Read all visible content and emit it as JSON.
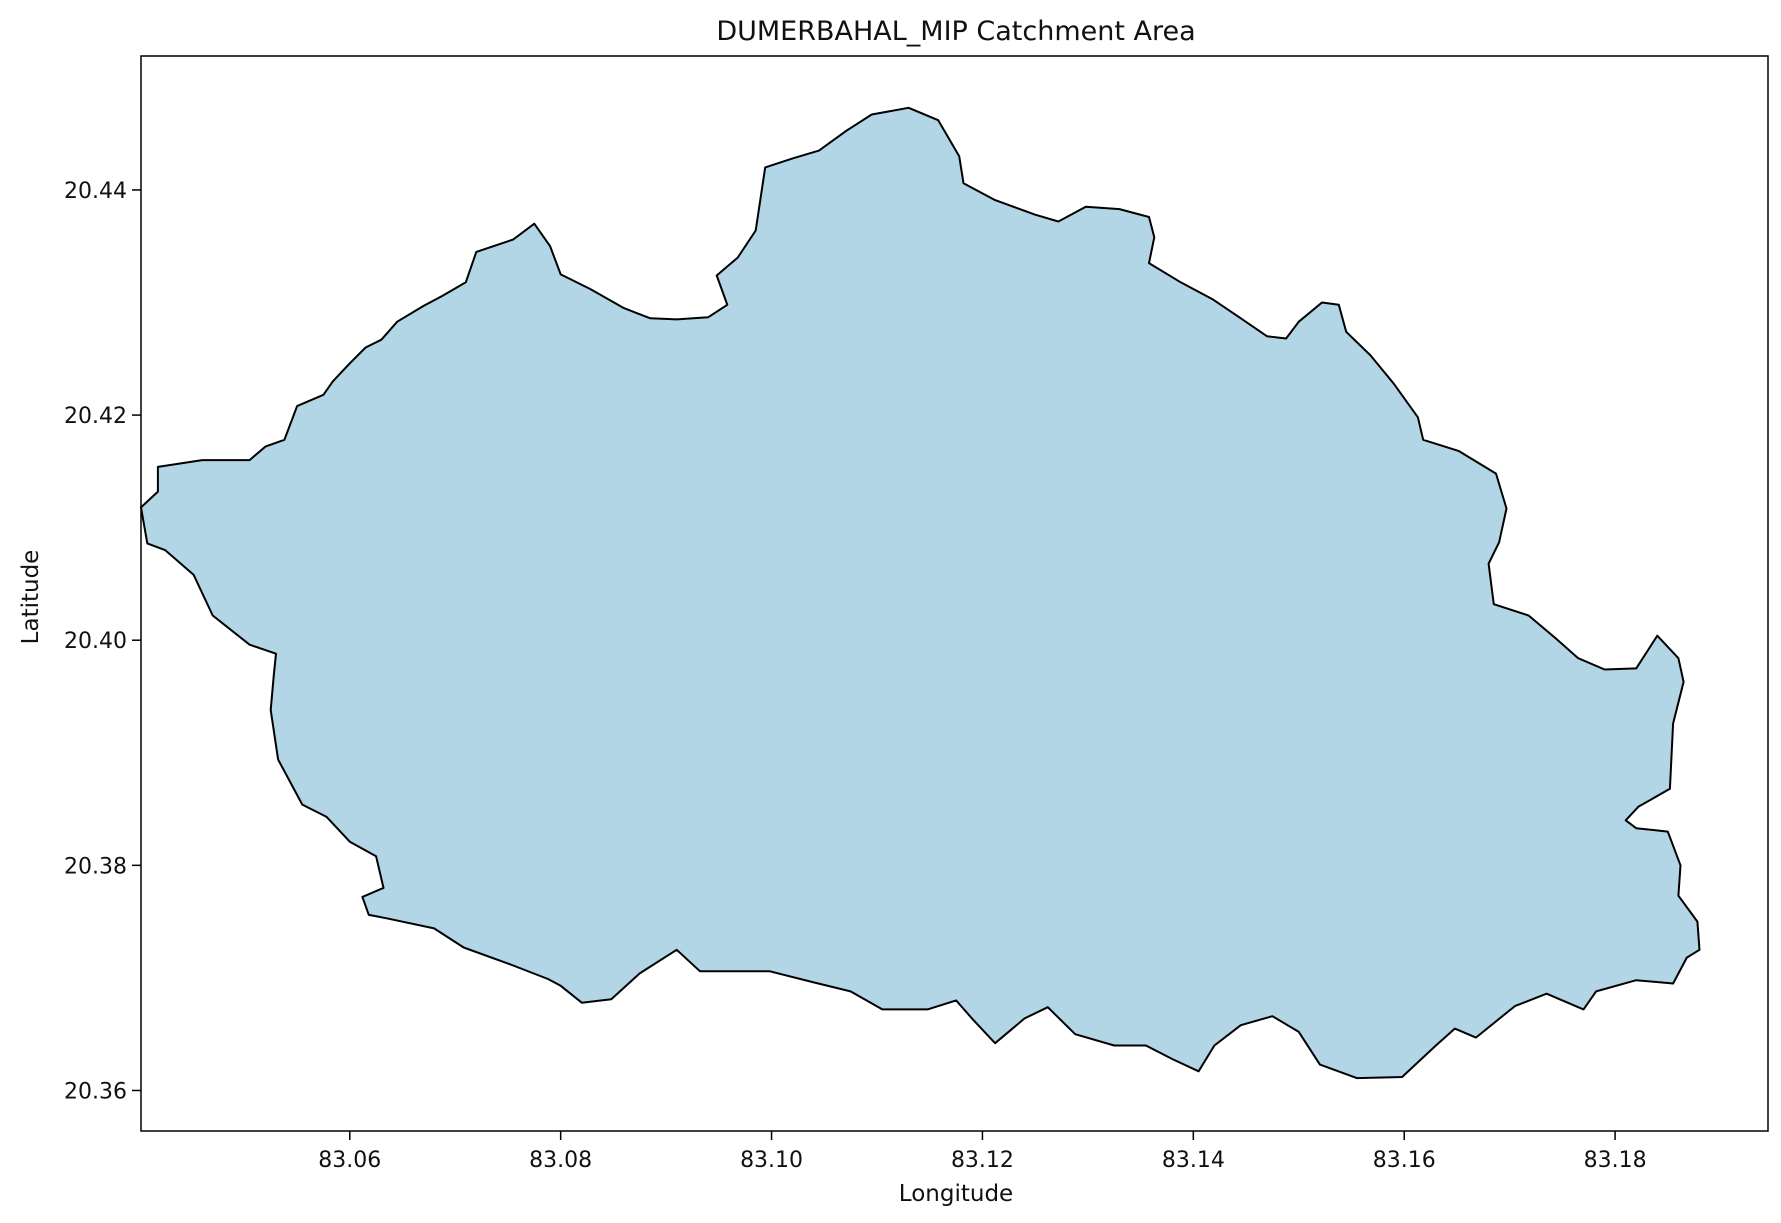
{
  "chart_data": {
    "type": "map",
    "title": "DUMERBAHAL_MIP Catchment Area",
    "xlabel": "Longitude",
    "ylabel": "Latitude",
    "xlim": [
      83.0402,
      83.1945
    ],
    "ylim": [
      20.3564,
      20.4519
    ],
    "x_ticks": [
      83.06,
      83.08,
      83.1,
      83.12,
      83.14,
      83.16,
      83.18
    ],
    "x_tick_labels": [
      "83.06",
      "83.08",
      "83.10",
      "83.12",
      "83.14",
      "83.16",
      "83.18"
    ],
    "y_ticks": [
      20.36,
      20.38,
      20.4,
      20.42,
      20.44
    ],
    "y_tick_labels": [
      "20.36",
      "20.38",
      "20.40",
      "20.42",
      "20.44"
    ],
    "grid": false,
    "fill_color": "#b3d6e6",
    "edge_color": "#000000",
    "catchment_boundary": [
      [
        83.1095,
        20.4467
      ],
      [
        83.113,
        20.4473
      ],
      [
        83.1158,
        20.4462
      ],
      [
        83.1178,
        20.443
      ],
      [
        83.1182,
        20.4406
      ],
      [
        83.1212,
        20.4391
      ],
      [
        83.125,
        20.4378
      ],
      [
        83.1272,
        20.4372
      ],
      [
        83.1298,
        20.4385
      ],
      [
        83.133,
        20.4383
      ],
      [
        83.1358,
        20.4376
      ],
      [
        83.1363,
        20.4358
      ],
      [
        83.1358,
        20.4335
      ],
      [
        83.1388,
        20.4318
      ],
      [
        83.1418,
        20.4303
      ],
      [
        83.1445,
        20.4286
      ],
      [
        83.147,
        20.427
      ],
      [
        83.1488,
        20.4268
      ],
      [
        83.15,
        20.4283
      ],
      [
        83.1522,
        20.43
      ],
      [
        83.1538,
        20.4298
      ],
      [
        83.1545,
        20.4274
      ],
      [
        83.1568,
        20.4253
      ],
      [
        83.159,
        20.4228
      ],
      [
        83.1613,
        20.4198
      ],
      [
        83.1618,
        20.4178
      ],
      [
        83.1652,
        20.4168
      ],
      [
        83.1687,
        20.4148
      ],
      [
        83.1697,
        20.4117
      ],
      [
        83.169,
        20.4087
      ],
      [
        83.168,
        20.4068
      ],
      [
        83.1685,
        20.4032
      ],
      [
        83.1718,
        20.4022
      ],
      [
        83.1742,
        20.4003
      ],
      [
        83.1765,
        20.3984
      ],
      [
        83.179,
        20.3974
      ],
      [
        83.182,
        20.3975
      ],
      [
        83.184,
        20.4004
      ],
      [
        83.186,
        20.3984
      ],
      [
        83.1865,
        20.3963
      ],
      [
        83.1855,
        20.3926
      ],
      [
        83.1852,
        20.3868
      ],
      [
        83.1822,
        20.3852
      ],
      [
        83.181,
        20.384
      ],
      [
        83.182,
        20.3833
      ],
      [
        83.185,
        20.383
      ],
      [
        83.1862,
        20.38
      ],
      [
        83.186,
        20.3773
      ],
      [
        83.1878,
        20.375
      ],
      [
        83.188,
        20.3725
      ],
      [
        83.1868,
        20.3718
      ],
      [
        83.1855,
        20.3695
      ],
      [
        83.182,
        20.3698
      ],
      [
        83.1782,
        20.3688
      ],
      [
        83.177,
        20.3672
      ],
      [
        83.1735,
        20.3686
      ],
      [
        83.1705,
        20.3675
      ],
      [
        83.1668,
        20.3647
      ],
      [
        83.1648,
        20.3655
      ],
      [
        83.163,
        20.364
      ],
      [
        83.1598,
        20.3612
      ],
      [
        83.1555,
        20.3611
      ],
      [
        83.152,
        20.3623
      ],
      [
        83.15,
        20.3652
      ],
      [
        83.1475,
        20.3666
      ],
      [
        83.1445,
        20.3658
      ],
      [
        83.142,
        20.364
      ],
      [
        83.1405,
        20.3617
      ],
      [
        83.138,
        20.3628
      ],
      [
        83.1355,
        20.364
      ],
      [
        83.1325,
        20.364
      ],
      [
        83.1288,
        20.365
      ],
      [
        83.1262,
        20.3674
      ],
      [
        83.124,
        20.3664
      ],
      [
        83.1212,
        20.3642
      ],
      [
        83.119,
        20.3664
      ],
      [
        83.1175,
        20.368
      ],
      [
        83.1148,
        20.3672
      ],
      [
        83.1105,
        20.3672
      ],
      [
        83.1075,
        20.3688
      ],
      [
        83.104,
        20.3696
      ],
      [
        83.0998,
        20.3706
      ],
      [
        83.096,
        20.3706
      ],
      [
        83.0932,
        20.3706
      ],
      [
        83.091,
        20.3725
      ],
      [
        83.0875,
        20.3704
      ],
      [
        83.0848,
        20.3681
      ],
      [
        83.082,
        20.3678
      ],
      [
        83.08,
        20.3693
      ],
      [
        83.0788,
        20.3699
      ],
      [
        83.0755,
        20.3711
      ],
      [
        83.0708,
        20.3727
      ],
      [
        83.068,
        20.3744
      ],
      [
        83.0635,
        20.3753
      ],
      [
        83.0618,
        20.3756
      ],
      [
        83.0612,
        20.3772
      ],
      [
        83.0632,
        20.378
      ],
      [
        83.0625,
        20.3808
      ],
      [
        83.06,
        20.3821
      ],
      [
        83.0578,
        20.3843
      ],
      [
        83.0555,
        20.3854
      ],
      [
        83.0532,
        20.3894
      ],
      [
        83.0525,
        20.3938
      ],
      [
        83.0528,
        20.397
      ],
      [
        83.053,
        20.3988
      ],
      [
        83.0505,
        20.3996
      ],
      [
        83.047,
        20.4022
      ],
      [
        83.0452,
        20.4058
      ],
      [
        83.0425,
        20.408
      ],
      [
        83.0408,
        20.4086
      ],
      [
        83.0402,
        20.4118
      ],
      [
        83.0418,
        20.4132
      ],
      [
        83.0418,
        20.4154
      ],
      [
        83.046,
        20.416
      ],
      [
        83.0505,
        20.416
      ],
      [
        83.052,
        20.4172
      ],
      [
        83.0538,
        20.4178
      ],
      [
        83.055,
        20.4208
      ],
      [
        83.0575,
        20.4218
      ],
      [
        83.0584,
        20.423
      ],
      [
        83.06,
        20.4246
      ],
      [
        83.0615,
        20.426
      ],
      [
        83.063,
        20.4267
      ],
      [
        83.0645,
        20.4283
      ],
      [
        83.067,
        20.4297
      ],
      [
        83.0688,
        20.4306
      ],
      [
        83.071,
        20.4318
      ],
      [
        83.072,
        20.4345
      ],
      [
        83.0755,
        20.4356
      ],
      [
        83.0775,
        20.437
      ],
      [
        83.079,
        20.435
      ],
      [
        83.08,
        20.4325
      ],
      [
        83.0828,
        20.4312
      ],
      [
        83.086,
        20.4295
      ],
      [
        83.0885,
        20.4286
      ],
      [
        83.091,
        20.4285
      ],
      [
        83.094,
        20.4287
      ],
      [
        83.0958,
        20.4298
      ],
      [
        83.0948,
        20.4324
      ],
      [
        83.0968,
        20.434
      ],
      [
        83.0985,
        20.4364
      ],
      [
        83.0994,
        20.442
      ],
      [
        83.102,
        20.4428
      ],
      [
        83.1045,
        20.4435
      ],
      [
        83.107,
        20.4452
      ],
      [
        83.1095,
        20.4467
      ]
    ]
  }
}
